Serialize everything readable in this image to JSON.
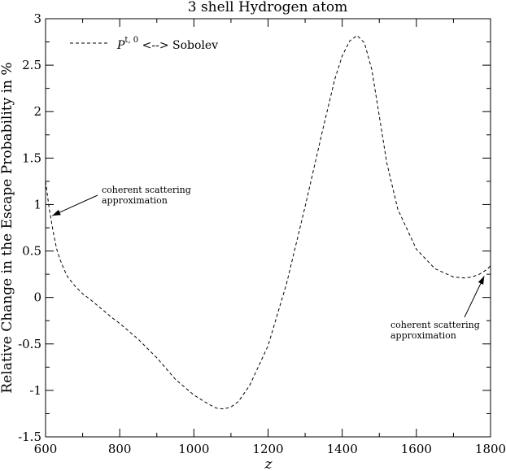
{
  "chart_data": {
    "type": "line",
    "title": "3 shell Hydrogen atom",
    "xlabel": "z",
    "ylabel": "Relative Change in the Escape Probability in %",
    "xlim": [
      600,
      1800
    ],
    "ylim": [
      -1.5,
      3
    ],
    "xticks": [
      "600",
      "800",
      "1000",
      "1200",
      "1400",
      "1600",
      "1800"
    ],
    "yticks": [
      "-1.5",
      "-1",
      "-0.5",
      "0",
      "0.5",
      "1",
      "1.5",
      "2",
      "2.5",
      "3"
    ],
    "grid": false,
    "legend": {
      "placement": "top-left",
      "label_main": "P",
      "label_sup": "t, 0",
      "label_rest": " <--> Sobolev"
    },
    "series": [
      {
        "name": "P t,0 <--> Sobolev",
        "style": "dashed",
        "x": [
          600,
          610,
          620,
          630,
          640,
          650,
          660,
          680,
          700,
          720,
          750,
          780,
          800,
          850,
          900,
          950,
          1000,
          1040,
          1060,
          1080,
          1100,
          1120,
          1150,
          1200,
          1250,
          1300,
          1350,
          1380,
          1400,
          1420,
          1440,
          1460,
          1480,
          1500,
          1520,
          1550,
          1600,
          1650,
          1700,
          1730,
          1750,
          1770,
          1790,
          1800
        ],
        "y": [
          1.25,
          0.95,
          0.72,
          0.52,
          0.4,
          0.3,
          0.22,
          0.12,
          0.04,
          -0.02,
          -0.12,
          -0.22,
          -0.28,
          -0.45,
          -0.65,
          -0.88,
          -1.05,
          -1.15,
          -1.19,
          -1.2,
          -1.18,
          -1.12,
          -0.95,
          -0.52,
          0.15,
          0.98,
          1.85,
          2.35,
          2.6,
          2.76,
          2.82,
          2.74,
          2.45,
          1.95,
          1.45,
          0.95,
          0.52,
          0.31,
          0.22,
          0.21,
          0.22,
          0.25,
          0.3,
          0.34
        ]
      }
    ],
    "annotations": [
      {
        "lines": [
          "coherent scattering",
          "approximation"
        ],
        "arrow_to": [
          618,
          0.88
        ]
      },
      {
        "lines": [
          "coherent scattering",
          "approximation"
        ],
        "arrow_to": [
          1783,
          0.23
        ]
      }
    ]
  }
}
